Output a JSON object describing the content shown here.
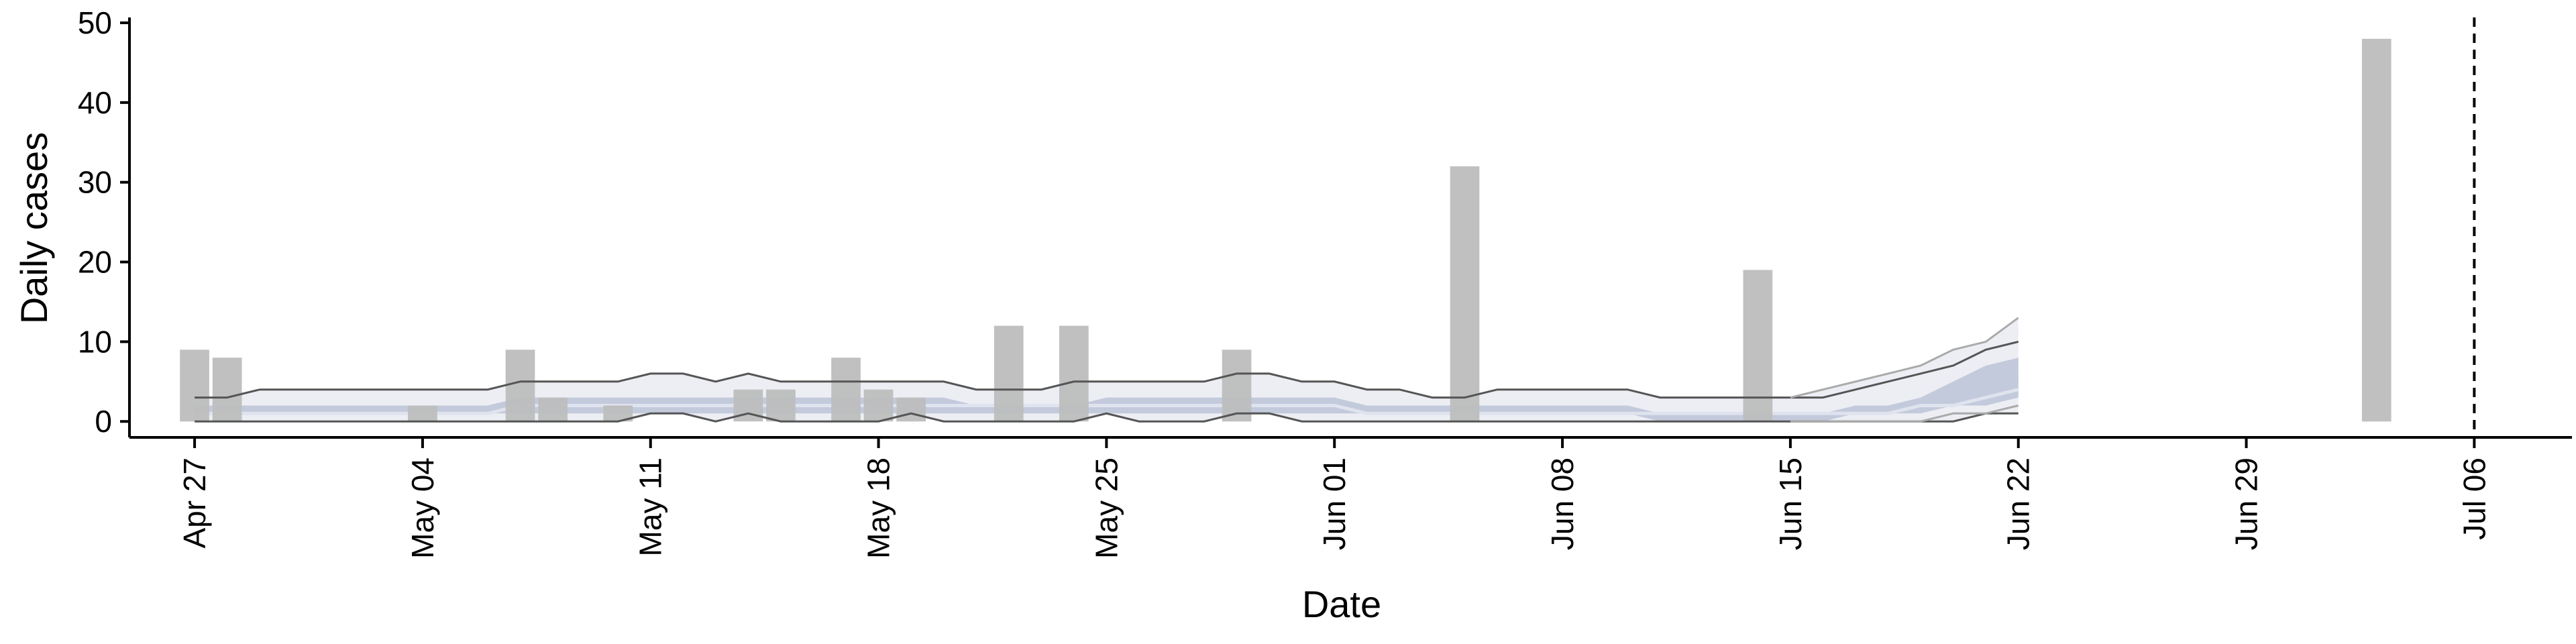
{
  "chart_data": {
    "type": "bar",
    "title": "",
    "xlabel": "Date",
    "ylabel": "Daily cases",
    "ylim": [
      -2,
      50
    ],
    "yticks": [
      0,
      10,
      20,
      30,
      40,
      50
    ],
    "xlim": [
      "2020-04-25",
      "2020-07-09"
    ],
    "xtick_dates": [
      "2020-04-27",
      "2020-05-04",
      "2020-05-11",
      "2020-05-18",
      "2020-05-25",
      "2020-06-01",
      "2020-06-08",
      "2020-06-15",
      "2020-06-22",
      "2020-06-29",
      "2020-07-06"
    ],
    "xtick_labels": [
      "Apr 27",
      "May 04",
      "May 11",
      "May 18",
      "May 25",
      "Jun 01",
      "Jun 08",
      "Jun 15",
      "Jun 22",
      "Jun 29",
      "Jul 06"
    ],
    "grid": false,
    "colors": {
      "bars": "#bdbdbd",
      "band_outer": "#eceef4",
      "band_inner": "#c3cadc",
      "median": "#dfe3ee",
      "interval_lines": "#555555",
      "forecast_lines": "#aaaaaa",
      "axis": "#000000"
    },
    "observed_cases": [
      {
        "date": "2020-04-27",
        "value": 9
      },
      {
        "date": "2020-04-28",
        "value": 8
      },
      {
        "date": "2020-05-04",
        "value": 2
      },
      {
        "date": "2020-05-07",
        "value": 9
      },
      {
        "date": "2020-05-08",
        "value": 3
      },
      {
        "date": "2020-05-10",
        "value": 2
      },
      {
        "date": "2020-05-14",
        "value": 4
      },
      {
        "date": "2020-05-15",
        "value": 4
      },
      {
        "date": "2020-05-17",
        "value": 8
      },
      {
        "date": "2020-05-18",
        "value": 4
      },
      {
        "date": "2020-05-19",
        "value": 3
      },
      {
        "date": "2020-05-22",
        "value": 12
      },
      {
        "date": "2020-05-24",
        "value": 12
      },
      {
        "date": "2020-05-29",
        "value": 9
      },
      {
        "date": "2020-06-05",
        "value": 32
      },
      {
        "date": "2020-06-14",
        "value": 19
      },
      {
        "date": "2020-07-03",
        "value": 48
      }
    ],
    "estimate": {
      "dates": [
        "2020-04-27",
        "2020-04-28",
        "2020-04-29",
        "2020-04-30",
        "2020-05-01",
        "2020-05-02",
        "2020-05-03",
        "2020-05-04",
        "2020-05-05",
        "2020-05-06",
        "2020-05-07",
        "2020-05-08",
        "2020-05-09",
        "2020-05-10",
        "2020-05-11",
        "2020-05-12",
        "2020-05-13",
        "2020-05-14",
        "2020-05-15",
        "2020-05-16",
        "2020-05-17",
        "2020-05-18",
        "2020-05-19",
        "2020-05-20",
        "2020-05-21",
        "2020-05-22",
        "2020-05-23",
        "2020-05-24",
        "2020-05-25",
        "2020-05-26",
        "2020-05-27",
        "2020-05-28",
        "2020-05-29",
        "2020-05-30",
        "2020-05-31",
        "2020-06-01",
        "2020-06-02",
        "2020-06-03",
        "2020-06-04",
        "2020-06-05",
        "2020-06-06",
        "2020-06-07",
        "2020-06-08",
        "2020-06-09",
        "2020-06-10",
        "2020-06-11",
        "2020-06-12",
        "2020-06-13",
        "2020-06-14",
        "2020-06-15",
        "2020-06-16",
        "2020-06-17",
        "2020-06-18",
        "2020-06-19",
        "2020-06-20",
        "2020-06-21",
        "2020-06-22"
      ],
      "upper90": [
        3,
        3,
        4,
        4,
        4,
        4,
        4,
        4,
        4,
        4,
        5,
        5,
        5,
        5,
        6,
        6,
        5,
        6,
        5,
        5,
        5,
        5,
        5,
        5,
        4,
        4,
        4,
        5,
        5,
        5,
        5,
        5,
        6,
        6,
        5,
        5,
        4,
        4,
        3,
        3,
        4,
        4,
        4,
        4,
        4,
        3,
        3,
        3,
        3,
        3,
        3,
        4,
        5,
        6,
        7,
        9,
        10
      ],
      "lower90": [
        0,
        0,
        0,
        0,
        0,
        0,
        0,
        0,
        0,
        0,
        0,
        0,
        0,
        0,
        1,
        1,
        0,
        1,
        0,
        0,
        0,
        0,
        1,
        0,
        0,
        0,
        0,
        0,
        1,
        0,
        0,
        0,
        1,
        1,
        0,
        0,
        0,
        0,
        0,
        0,
        0,
        0,
        0,
        0,
        0,
        0,
        0,
        0,
        0,
        0,
        0,
        0,
        0,
        0,
        0,
        1,
        1
      ],
      "upper50": [
        2,
        2,
        2,
        2,
        2,
        2,
        2,
        2,
        2,
        2,
        3,
        3,
        3,
        3,
        3,
        3,
        3,
        3,
        3,
        3,
        3,
        3,
        3,
        3,
        2,
        2,
        2,
        2,
        3,
        3,
        3,
        3,
        3,
        3,
        3,
        3,
        2,
        2,
        2,
        2,
        2,
        2,
        2,
        2,
        2,
        1,
        1,
        1,
        1,
        1,
        1,
        1,
        2,
        2,
        3,
        5,
        6
      ],
      "lower50": [
        1,
        1,
        1,
        1,
        1,
        1,
        1,
        1,
        1,
        1,
        1,
        1,
        1,
        1,
        1,
        1,
        1,
        1,
        1,
        1,
        1,
        1,
        1,
        1,
        1,
        1,
        1,
        1,
        1,
        1,
        1,
        1,
        1,
        1,
        1,
        1,
        1,
        1,
        1,
        1,
        1,
        1,
        1,
        1,
        1,
        0,
        0,
        0,
        0,
        0,
        0,
        1,
        1,
        1,
        2,
        2,
        3
      ],
      "median": [
        1,
        1,
        1,
        1,
        1,
        1,
        1,
        1,
        1,
        1,
        2,
        2,
        2,
        2,
        2,
        2,
        2,
        2,
        2,
        2,
        2,
        2,
        2,
        2,
        2,
        2,
        2,
        2,
        2,
        2,
        2,
        2,
        2,
        2,
        2,
        2,
        1,
        1,
        1,
        1,
        1,
        1,
        1,
        1,
        1,
        1,
        1,
        1,
        1,
        1,
        1,
        1,
        1,
        2,
        2,
        3,
        4
      ]
    },
    "forecast": {
      "dates": [
        "2020-06-15",
        "2020-06-16",
        "2020-06-17",
        "2020-06-18",
        "2020-06-19",
        "2020-06-20",
        "2020-06-21",
        "2020-06-22"
      ],
      "upper90": [
        3,
        4,
        5,
        6,
        7,
        9,
        10,
        13
      ],
      "lower90": [
        0,
        0,
        0,
        0,
        0,
        1,
        1,
        2
      ],
      "upper50": [
        1,
        1,
        2,
        2,
        3,
        5,
        7,
        8
      ],
      "lower50": [
        0,
        0,
        1,
        1,
        2,
        2,
        3,
        4
      ]
    },
    "reference_line": {
      "date": "2020-07-06",
      "style": "dashed"
    }
  }
}
